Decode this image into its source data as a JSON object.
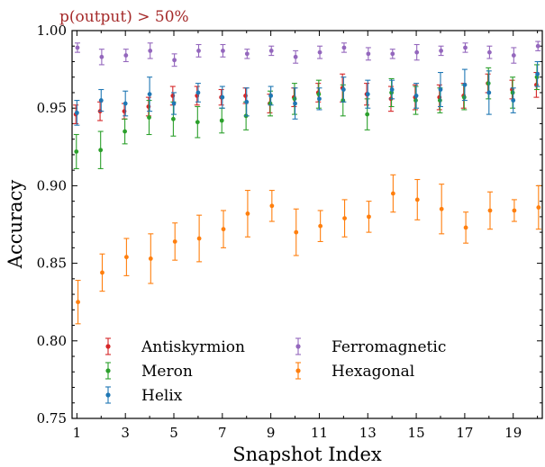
{
  "chart_data": {
    "type": "scatter",
    "title": "p(output) > 50%",
    "title_color": "#a52a2a",
    "xlabel": "Snapshot Index",
    "ylabel": "Accuracy",
    "xlim": [
      0.8,
      20.2
    ],
    "ylim": [
      0.75,
      1.0
    ],
    "xticks": [
      1,
      3,
      5,
      7,
      9,
      11,
      13,
      15,
      17,
      19
    ],
    "yticks": [
      0.75,
      0.8,
      0.85,
      0.9,
      0.95,
      1.0
    ],
    "ytick_labels": [
      "0.75",
      "0.80",
      "0.85",
      "0.90",
      "0.95",
      "1.00"
    ],
    "grid": false,
    "legend_position": "lower-left",
    "x": [
      1,
      2,
      3,
      4,
      5,
      6,
      7,
      8,
      9,
      10,
      11,
      12,
      13,
      14,
      15,
      16,
      17,
      18,
      19,
      20
    ],
    "series": [
      {
        "name": "Antiskyrmion",
        "color": "#d62728",
        "values": [
          0.946,
          0.948,
          0.948,
          0.951,
          0.958,
          0.958,
          0.957,
          0.958,
          0.953,
          0.957,
          0.96,
          0.963,
          0.959,
          0.956,
          0.957,
          0.957,
          0.958,
          0.966,
          0.962,
          0.965
        ],
        "errors": [
          0.006,
          0.006,
          0.005,
          0.006,
          0.006,
          0.006,
          0.005,
          0.005,
          0.006,
          0.006,
          0.006,
          0.009,
          0.007,
          0.008,
          0.008,
          0.008,
          0.008,
          0.006,
          0.006,
          0.008
        ]
      },
      {
        "name": "Meron",
        "color": "#2ca02c",
        "values": [
          0.922,
          0.923,
          0.935,
          0.944,
          0.943,
          0.941,
          0.942,
          0.945,
          0.953,
          0.956,
          0.959,
          0.955,
          0.946,
          0.96,
          0.955,
          0.955,
          0.957,
          0.966,
          0.96,
          0.97
        ],
        "errors": [
          0.011,
          0.012,
          0.008,
          0.011,
          0.011,
          0.01,
          0.008,
          0.009,
          0.008,
          0.01,
          0.009,
          0.01,
          0.01,
          0.009,
          0.009,
          0.008,
          0.008,
          0.01,
          0.01,
          0.008
        ]
      },
      {
        "name": "Helix",
        "color": "#1f77b4",
        "values": [
          0.947,
          0.955,
          0.953,
          0.959,
          0.953,
          0.96,
          0.957,
          0.954,
          0.958,
          0.953,
          0.956,
          0.962,
          0.959,
          0.962,
          0.958,
          0.962,
          0.965,
          0.96,
          0.955,
          0.972
        ],
        "errors": [
          0.008,
          0.007,
          0.008,
          0.011,
          0.007,
          0.006,
          0.007,
          0.009,
          0.006,
          0.01,
          0.007,
          0.008,
          0.009,
          0.006,
          0.008,
          0.011,
          0.01,
          0.014,
          0.008,
          0.008
        ]
      },
      {
        "name": "Ferromagnetic",
        "color": "#9467bd",
        "values": [
          0.989,
          0.983,
          0.984,
          0.987,
          0.981,
          0.987,
          0.987,
          0.985,
          0.987,
          0.983,
          0.986,
          0.989,
          0.985,
          0.985,
          0.986,
          0.987,
          0.989,
          0.986,
          0.984,
          0.99
        ],
        "errors": [
          0.003,
          0.005,
          0.004,
          0.005,
          0.004,
          0.004,
          0.004,
          0.003,
          0.003,
          0.004,
          0.004,
          0.003,
          0.004,
          0.003,
          0.005,
          0.003,
          0.003,
          0.004,
          0.005,
          0.003
        ]
      },
      {
        "name": "Hexagonal",
        "color": "#ff7f0e",
        "values": [
          0.825,
          0.844,
          0.854,
          0.853,
          0.864,
          0.866,
          0.872,
          0.882,
          0.887,
          0.87,
          0.874,
          0.879,
          0.88,
          0.895,
          0.891,
          0.885,
          0.873,
          0.884,
          0.884,
          0.886
        ],
        "errors": [
          0.014,
          0.012,
          0.012,
          0.016,
          0.012,
          0.015,
          0.012,
          0.015,
          0.01,
          0.015,
          0.01,
          0.012,
          0.01,
          0.012,
          0.013,
          0.016,
          0.01,
          0.012,
          0.007,
          0.014
        ]
      }
    ],
    "legend_order": [
      "Antiskyrmion",
      "Meron",
      "Helix",
      "Ferromagnetic",
      "Hexagonal"
    ]
  }
}
